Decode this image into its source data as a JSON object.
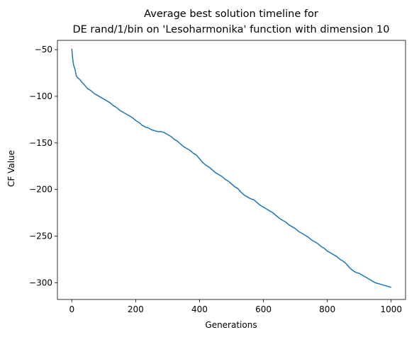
{
  "chart_data": {
    "type": "line",
    "title_line1": "Average best solution timeline for",
    "title_line2": "DE rand/1/bin on 'Lesoharmonika' function with dimension 10",
    "xlabel": "Generations",
    "ylabel": "CF Value",
    "xlim": [
      -45,
      1045
    ],
    "ylim": [
      -318,
      -40
    ],
    "xticks": [
      0,
      200,
      400,
      600,
      800,
      1000
    ],
    "yticks": [
      -50,
      -100,
      -150,
      -200,
      -250,
      -300
    ],
    "grid": false,
    "color": "#1f77b4",
    "series": [
      {
        "x": [
          0,
          2,
          4,
          6,
          8,
          10,
          14,
          18,
          25,
          32,
          40,
          50,
          60,
          70,
          80,
          90,
          100,
          110,
          120,
          130,
          140,
          150,
          160,
          170,
          180,
          190,
          200,
          210,
          220,
          230,
          240,
          250,
          260,
          270,
          280,
          290,
          300,
          310,
          320,
          330,
          340,
          350,
          360,
          370,
          380,
          390,
          400,
          410,
          420,
          430,
          440,
          450,
          460,
          470,
          480,
          490,
          500,
          510,
          520,
          530,
          540,
          550,
          560,
          570,
          580,
          590,
          600,
          610,
          620,
          630,
          640,
          650,
          660,
          670,
          680,
          690,
          700,
          710,
          720,
          730,
          740,
          750,
          760,
          770,
          780,
          790,
          800,
          810,
          820,
          830,
          840,
          850,
          860,
          870,
          880,
          890,
          900,
          910,
          920,
          930,
          940,
          950,
          960,
          970,
          980,
          990,
          1000
        ],
        "y": [
          -49,
          -57,
          -63,
          -67,
          -69,
          -71,
          -78,
          -80,
          -82,
          -85,
          -88,
          -92,
          -94,
          -97,
          -99,
          -101,
          -103,
          -105,
          -107,
          -110,
          -112,
          -115,
          -117,
          -119,
          -121,
          -123,
          -126,
          -128,
          -131,
          -133,
          -134,
          -136,
          -137,
          -138,
          -138,
          -139,
          -141,
          -143,
          -146,
          -148,
          -151,
          -154,
          -156,
          -158,
          -161,
          -163,
          -167,
          -171,
          -174,
          -176,
          -179,
          -182,
          -184,
          -186,
          -189,
          -191,
          -194,
          -197,
          -199,
          -203,
          -206,
          -208,
          -210,
          -211,
          -214,
          -217,
          -219,
          -221,
          -223,
          -225,
          -228,
          -231,
          -233,
          -235,
          -238,
          -240,
          -242,
          -245,
          -247,
          -249,
          -251,
          -254,
          -256,
          -258,
          -261,
          -263,
          -266,
          -268,
          -270,
          -272,
          -275,
          -277,
          -280,
          -284,
          -287,
          -289,
          -290,
          -292,
          -294,
          -296,
          -298,
          -300,
          -301,
          -302,
          -303,
          -304,
          -305
        ]
      }
    ]
  }
}
